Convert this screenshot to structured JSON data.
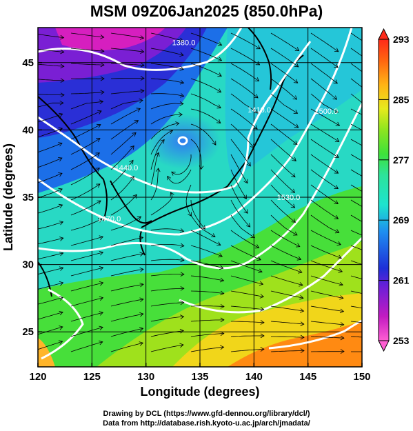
{
  "title": "MSM 09Z06Jan2025 (850.0hPa)",
  "x_axis": {
    "label": "Longitude (degrees)",
    "ticks": [
      {
        "value": 120,
        "label": "120"
      },
      {
        "value": 125,
        "label": "125"
      },
      {
        "value": 130,
        "label": "130"
      },
      {
        "value": 135,
        "label": "135"
      },
      {
        "value": 140,
        "label": "140"
      },
      {
        "value": 145,
        "label": "145"
      },
      {
        "value": 150,
        "label": "150"
      }
    ],
    "range": [
      120,
      150
    ]
  },
  "y_axis": {
    "label": "Latitude  (degrees)",
    "ticks": [
      {
        "value": 25,
        "label": "25"
      },
      {
        "value": 30,
        "label": "30"
      },
      {
        "value": 35,
        "label": "35"
      },
      {
        "value": 40,
        "label": "40"
      },
      {
        "value": 45,
        "label": "45"
      }
    ],
    "range": [
      22.4,
      47.6
    ]
  },
  "colorbar": {
    "min": 253,
    "max": 293,
    "ticks": [
      {
        "value": 293,
        "label": "293"
      },
      {
        "value": 285,
        "label": "285"
      },
      {
        "value": 277,
        "label": "277"
      },
      {
        "value": 269,
        "label": "269"
      },
      {
        "value": 261,
        "label": "261"
      },
      {
        "value": 253,
        "label": "253"
      }
    ]
  },
  "contour_labels": [
    {
      "text": "1380.0",
      "lon": 133.5,
      "lat": 46.3
    },
    {
      "text": "1440.0",
      "lon": 128.2,
      "lat": 37.0
    },
    {
      "text": "1470.0",
      "lon": 126.6,
      "lat": 33.2
    },
    {
      "text": "1530.0",
      "lon": 143.2,
      "lat": 34.8
    },
    {
      "text": "1500.0",
      "lon": 146.7,
      "lat": 41.2
    },
    {
      "text": "1410.0",
      "lon": 140.5,
      "lat": 41.3
    }
  ],
  "credits": {
    "line1": "Drawing by DCL (https://www.gfd-dennou.org/library/dcl/)",
    "line2": "Data from http://database.rish.kyoto-u.ac.jp/arch/jmadata/"
  },
  "colors": {
    "cold": "#c21bc1",
    "cool": "#1e2fd8",
    "mid": "#1de3cf",
    "warm": "#3ee23a",
    "hot": "#ff7a10",
    "contour": "#ffffff",
    "wind": "#000000"
  }
}
